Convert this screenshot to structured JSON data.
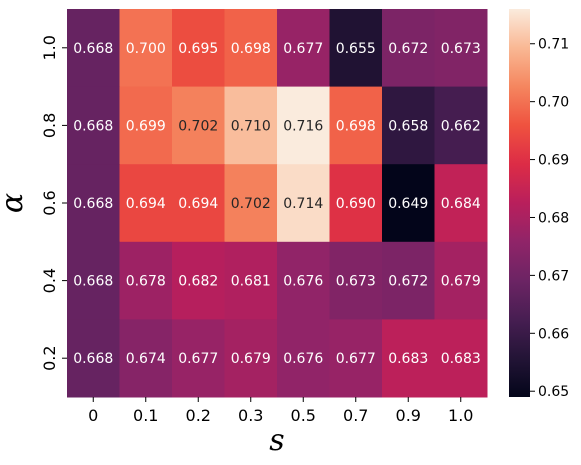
{
  "chart_data": {
    "type": "heatmap",
    "xlabel": "s",
    "ylabel": "α",
    "x_categories": [
      "0",
      "0.1",
      "0.2",
      "0.3",
      "0.5",
      "0.7",
      "0.9",
      "1.0"
    ],
    "y_categories": [
      "1.0",
      "0.8",
      "0.6",
      "0.4",
      "0.2"
    ],
    "values": [
      [
        0.668,
        0.7,
        0.695,
        0.698,
        0.677,
        0.655,
        0.672,
        0.673
      ],
      [
        0.668,
        0.699,
        0.702,
        0.71,
        0.716,
        0.698,
        0.658,
        0.662
      ],
      [
        0.668,
        0.694,
        0.694,
        0.702,
        0.714,
        0.69,
        0.649,
        0.684
      ],
      [
        0.668,
        0.678,
        0.682,
        0.681,
        0.676,
        0.673,
        0.672,
        0.679
      ],
      [
        0.668,
        0.674,
        0.677,
        0.679,
        0.676,
        0.677,
        0.683,
        0.683
      ]
    ],
    "labels": [
      [
        "0.668",
        "0.700",
        "0.695",
        "0.698",
        "0.677",
        "0.655",
        "0.672",
        "0.673"
      ],
      [
        "0.668",
        "0.699",
        "0.702",
        "0.710",
        "0.716",
        "0.698",
        "0.658",
        "0.662"
      ],
      [
        "0.668",
        "0.694",
        "0.694",
        "0.702",
        "0.714",
        "0.690",
        "0.649",
        "0.684"
      ],
      [
        "0.668",
        "0.678",
        "0.682",
        "0.681",
        "0.676",
        "0.673",
        "0.672",
        "0.679"
      ],
      [
        "0.668",
        "0.674",
        "0.677",
        "0.679",
        "0.676",
        "0.677",
        "0.683",
        "0.683"
      ]
    ],
    "colorbar": {
      "vmin": 0.649,
      "vmax": 0.716,
      "ticks": [
        "0.65",
        "0.66",
        "0.67",
        "0.68",
        "0.69",
        "0.70",
        "0.71"
      ],
      "colormap": "rocket"
    },
    "grid": false
  }
}
